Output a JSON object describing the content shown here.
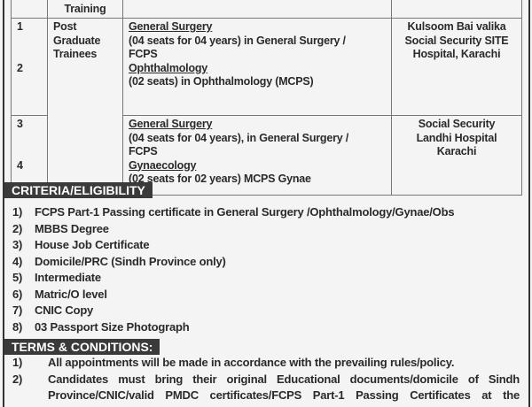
{
  "table": {
    "header_training": "Training",
    "post": [
      "Post",
      "Graduate",
      "Trainees"
    ],
    "rows": [
      {
        "nums": [
          "1",
          "2"
        ],
        "spec1": "General Surgery",
        "desc1a": "(04 seats for 04 years) in General Surgery /",
        "desc1b": "FCPS",
        "spec2": "Ophthalmology",
        "desc2": "(02 seats) in Ophthalmology (MCPS)",
        "hospital": [
          "Kulsoom Bai valika",
          "Social Security SITE",
          "Hospital, Karachi"
        ]
      },
      {
        "nums": [
          "3",
          "4"
        ],
        "spec1": "General Surgery",
        "desc1a": "(04 seats for 04 years), in General Surgery /",
        "desc1b": "FCPS",
        "spec2": "Gynaecology",
        "desc2": "(02 seats for 02 years) MCPS Gynae",
        "hospital": [
          "Social Security",
          "Landhi Hospital",
          "Karachi"
        ]
      }
    ]
  },
  "criteria": {
    "title": "CRITERIA/ELIGIBILITY",
    "items": [
      {
        "n": "1)",
        "t": "FCPS Part-1 Passing certificate in General Surgery /Ophthalmology/Gynae/Obs"
      },
      {
        "n": "2)",
        "t": "MBBS Degree"
      },
      {
        "n": "3)",
        "t": "House Job Certificate"
      },
      {
        "n": "4)",
        "t": "Domicile/PRC (Sindh Province only)"
      },
      {
        "n": "5)",
        "t": "Intermediate"
      },
      {
        "n": "6)",
        "t": "Matric/O level"
      },
      {
        "n": "7)",
        "t": "CNIC Copy"
      },
      {
        "n": "8)",
        "t": "03 Passport Size Photograph"
      }
    ]
  },
  "terms": {
    "title": "TERMS & CONDITIONS:",
    "items": [
      {
        "n": "1)",
        "t": "All appointments will be made in accordance with the prevailing rules/policy."
      },
      {
        "n": "2)",
        "t": "Candidates must bring their original Educational documents/domicile of Sindh"
      },
      {
        "n": "",
        "t": "Province/CNIC/valid PMDC certificates/FCPS Part-1 Passing Certificates at the"
      }
    ]
  }
}
